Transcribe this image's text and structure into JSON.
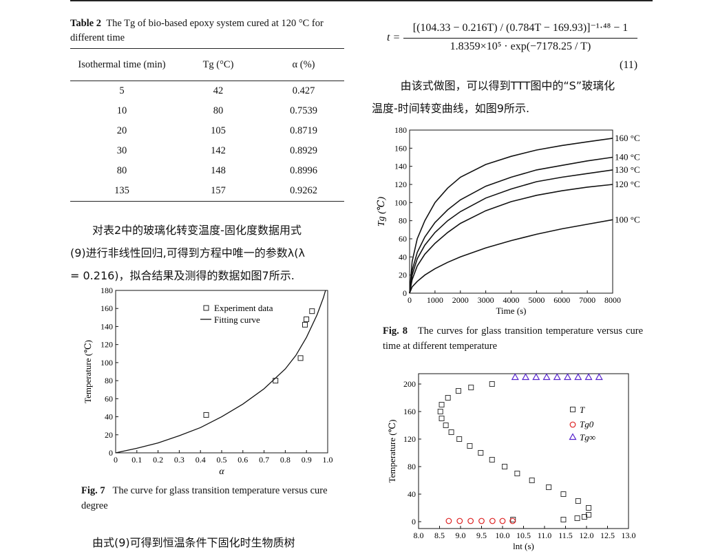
{
  "table2": {
    "caption_label": "Table 2",
    "caption_text": "The Tg of bio-based epoxy system cured at 120 °C for different time",
    "headers": [
      "Isothermal time (min)",
      "Tg (°C)",
      "α (%)"
    ],
    "rows": [
      [
        "5",
        "42",
        "0.427"
      ],
      [
        "10",
        "80",
        "0.7539"
      ],
      [
        "20",
        "105",
        "0.8719"
      ],
      [
        "30",
        "142",
        "0.8929"
      ],
      [
        "80",
        "148",
        "0.8996"
      ],
      [
        "135",
        "157",
        "0.9262"
      ]
    ]
  },
  "para_left_1": [
    "对表2中的玻璃化转变温度-固化度数据用式",
    "(9)进行非线性回归,可得到方程中唯一的参数λ(λ",
    "= 0.216)，拟合结果及测得的数据如图7所示."
  ],
  "para_left_2": "由式(9)可得到恒温条件下固化时生物质树",
  "equation": {
    "lhs": "t =",
    "numerator": "[(104.33 − 0.216T) / (0.784T − 169.93)]⁻¹·⁴⁸ − 1",
    "denominator": "1.8359×10⁵ · exp(−7178.25 / T)",
    "number": "(11)"
  },
  "para_right": [
    "由该式做图，可以得到TTT图中的“S”玻璃化",
    "温度-时间转变曲线，如图9所示."
  ],
  "fig7": {
    "caption_label": "Fig. 7",
    "caption_text": "The curve for glass transition temperature versus cure degree"
  },
  "fig8": {
    "caption_label": "Fig. 8",
    "caption_text": "The curves for glass transition temperature versus cure time at different temperature"
  },
  "chart_data": [
    {
      "type": "scatter",
      "title": "",
      "xlabel": "α",
      "ylabel": "Temperature (℃)",
      "xlim": [
        0,
        1.0
      ],
      "ylim": [
        0,
        180
      ],
      "xticks": [
        "0",
        "0.1",
        "0.2",
        "0.3",
        "0.4",
        "0.5",
        "0.6",
        "0.7",
        "0.8",
        "0.9",
        "1.0"
      ],
      "yticks": [
        "0",
        "20",
        "40",
        "60",
        "80",
        "100",
        "120",
        "140",
        "160",
        "180"
      ],
      "legend": [
        "Experiment data",
        "Fitting curve"
      ],
      "legend_position": "top-right",
      "series": [
        {
          "name": "Experiment data",
          "points": [
            [
              0.427,
              42
            ],
            [
              0.7539,
              80
            ],
            [
              0.8719,
              105
            ],
            [
              0.8929,
              142
            ],
            [
              0.8996,
              148
            ],
            [
              0.9262,
              157
            ]
          ]
        },
        {
          "name": "Fitting curve",
          "points": [
            [
              0,
              0
            ],
            [
              0.1,
              5
            ],
            [
              0.2,
              11
            ],
            [
              0.3,
              19
            ],
            [
              0.4,
              28
            ],
            [
              0.5,
              40
            ],
            [
              0.6,
              54
            ],
            [
              0.7,
              71
            ],
            [
              0.8,
              93
            ],
            [
              0.85,
              108
            ],
            [
              0.9,
              128
            ],
            [
              0.95,
              153
            ],
            [
              0.98,
              172
            ],
            [
              0.99,
              180
            ]
          ]
        }
      ]
    },
    {
      "type": "line",
      "title": "",
      "xlabel": "Time (s)",
      "ylabel": "Tg (℃)",
      "xlim": [
        0,
        8000
      ],
      "ylim": [
        0,
        180
      ],
      "xticks": [
        "0",
        "1000",
        "2000",
        "3000",
        "4000",
        "5000",
        "6000",
        "7000",
        "8000"
      ],
      "yticks": [
        "0",
        "20",
        "40",
        "60",
        "80",
        "100",
        "120",
        "140",
        "160",
        "180"
      ],
      "series": [
        {
          "name": "160 °C",
          "points": [
            [
              0,
              0
            ],
            [
              100,
              35
            ],
            [
              300,
              60
            ],
            [
              600,
              80
            ],
            [
              1000,
              100
            ],
            [
              1500,
              116
            ],
            [
              2000,
              128
            ],
            [
              3000,
              142
            ],
            [
              4000,
              151
            ],
            [
              5000,
              158
            ],
            [
              6000,
              163
            ],
            [
              7000,
              167
            ],
            [
              8000,
              171
            ]
          ]
        },
        {
          "name": "140 °C",
          "points": [
            [
              0,
              0
            ],
            [
              100,
              25
            ],
            [
              300,
              45
            ],
            [
              600,
              62
            ],
            [
              1000,
              78
            ],
            [
              1500,
              92
            ],
            [
              2000,
              103
            ],
            [
              3000,
              118
            ],
            [
              4000,
              128
            ],
            [
              5000,
              136
            ],
            [
              6000,
              141
            ],
            [
              7000,
              146
            ],
            [
              8000,
              150
            ]
          ]
        },
        {
          "name": "130 °C",
          "points": [
            [
              0,
              0
            ],
            [
              100,
              20
            ],
            [
              300,
              38
            ],
            [
              600,
              53
            ],
            [
              1000,
              67
            ],
            [
              1500,
              80
            ],
            [
              2000,
              90
            ],
            [
              3000,
              105
            ],
            [
              4000,
              115
            ],
            [
              5000,
              123
            ],
            [
              6000,
              128
            ],
            [
              7000,
              132
            ],
            [
              8000,
              136
            ]
          ]
        },
        {
          "name": "120 °C",
          "points": [
            [
              0,
              0
            ],
            [
              100,
              15
            ],
            [
              300,
              30
            ],
            [
              600,
              43
            ],
            [
              1000,
              55
            ],
            [
              1500,
              67
            ],
            [
              2000,
              77
            ],
            [
              3000,
              91
            ],
            [
              4000,
              101
            ],
            [
              5000,
              108
            ],
            [
              6000,
              113
            ],
            [
              7000,
              117
            ],
            [
              8000,
              120
            ]
          ]
        },
        {
          "name": "100 °C",
          "points": [
            [
              0,
              0
            ],
            [
              100,
              7
            ],
            [
              300,
              13
            ],
            [
              600,
              20
            ],
            [
              1000,
              27
            ],
            [
              1500,
              34
            ],
            [
              2000,
              40
            ],
            [
              3000,
              50
            ],
            [
              4000,
              58
            ],
            [
              5000,
              65
            ],
            [
              6000,
              71
            ],
            [
              7000,
              76
            ],
            [
              8000,
              81
            ]
          ]
        }
      ]
    },
    {
      "type": "scatter",
      "title": "",
      "xlabel": "lnt (s)",
      "ylabel": "Temperature (℃)",
      "xlim": [
        8.0,
        13.0
      ],
      "ylim": [
        -10,
        215
      ],
      "xticks": [
        "8.0",
        "8.5",
        "9.0",
        "9.5",
        "10.0",
        "10.5",
        "11.0",
        "11.5",
        "12.0",
        "12.5",
        "13.0"
      ],
      "yticks": [
        "0",
        "40",
        "80",
        "120",
        "160",
        "200"
      ],
      "legend_position": "right",
      "series": [
        {
          "name": "T",
          "marker": "square",
          "color": "#333333",
          "points": [
            [
              8.55,
              170
            ],
            [
              8.7,
              180
            ],
            [
              8.95,
              190
            ],
            [
              9.25,
              195
            ],
            [
              9.75,
              200
            ],
            [
              8.52,
              160
            ],
            [
              8.55,
              150
            ],
            [
              8.65,
              140
            ],
            [
              8.78,
              130
            ],
            [
              8.97,
              120
            ],
            [
              9.22,
              110
            ],
            [
              9.48,
              100
            ],
            [
              9.75,
              90
            ],
            [
              10.05,
              80
            ],
            [
              10.35,
              70
            ],
            [
              10.7,
              60
            ],
            [
              11.1,
              50
            ],
            [
              11.45,
              40
            ],
            [
              11.8,
              30
            ],
            [
              12.05,
              20
            ],
            [
              12.05,
              10
            ],
            [
              11.95,
              7
            ],
            [
              11.78,
              5
            ],
            [
              11.45,
              3
            ],
            [
              10.25,
              3
            ]
          ]
        },
        {
          "name": "Tg0",
          "marker": "circle",
          "color": "#dd2222",
          "points": [
            [
              8.72,
              1
            ],
            [
              8.98,
              1
            ],
            [
              9.24,
              1
            ],
            [
              9.5,
              1
            ],
            [
              9.76,
              1
            ],
            [
              10.0,
              1
            ],
            [
              10.24,
              1
            ]
          ]
        },
        {
          "name": "Tg∞",
          "marker": "triangle",
          "color": "#5522cc",
          "points": [
            [
              10.3,
              210
            ],
            [
              10.55,
              210
            ],
            [
              10.8,
              210
            ],
            [
              11.05,
              210
            ],
            [
              11.3,
              210
            ],
            [
              11.55,
              210
            ],
            [
              11.8,
              210
            ],
            [
              12.05,
              210
            ],
            [
              12.3,
              210
            ]
          ]
        }
      ]
    }
  ]
}
